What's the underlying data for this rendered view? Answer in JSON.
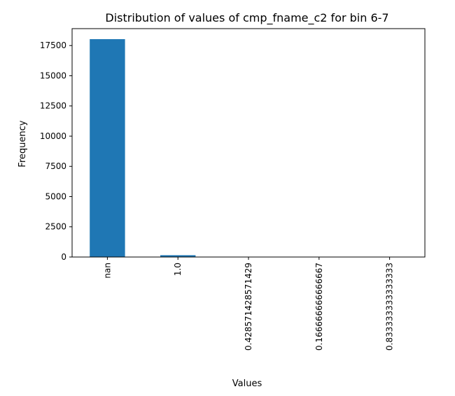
{
  "chart_data": {
    "type": "bar",
    "title": "Distribution of values of cmp_fname_c2 for bin 6-7",
    "xlabel": "Values",
    "ylabel": "Frequency",
    "categories": [
      "nan",
      "1.0",
      "0.428571428571429",
      "0.166666666666667",
      "0.833333333333333"
    ],
    "values": [
      18030,
      150,
      2,
      1,
      1
    ],
    "ylim": [
      0,
      18900
    ],
    "yticks": [
      0,
      2500,
      5000,
      7500,
      10000,
      12500,
      15000,
      17500
    ],
    "grid": false,
    "legend": "none",
    "bar_color": "#1f77b4"
  }
}
